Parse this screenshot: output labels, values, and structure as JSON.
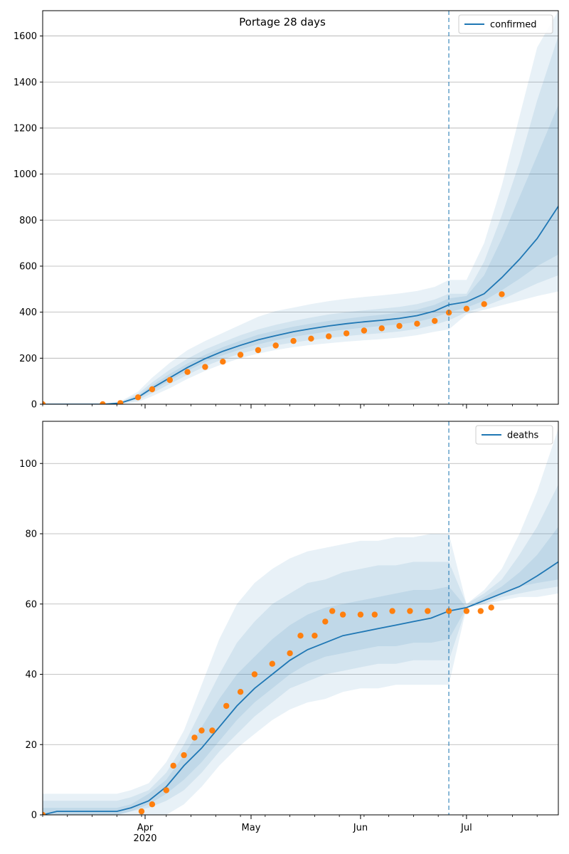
{
  "title": "Portage 28 days",
  "colors": {
    "model_line": "#1f77b4",
    "observed": "#ff7f0e",
    "band": "#1f77b4",
    "forecast_marker": "#1f77b4",
    "grid": "#b0b0b0"
  },
  "chart_data": [
    {
      "type": "line",
      "panel": "confirmed",
      "legend": {
        "label": "confirmed",
        "placement": "top-right"
      },
      "grid": {
        "y": true,
        "x": false
      },
      "x_range": [
        "2020-03-03",
        "2020-07-27"
      ],
      "ylim": [
        0,
        1710
      ],
      "yticks": [
        0,
        200,
        400,
        600,
        800,
        1000,
        1200,
        1400,
        1600
      ],
      "forecast_start": "2020-06-26",
      "model": {
        "x": [
          "2020-03-03",
          "2020-03-15",
          "2020-03-20",
          "2020-03-25",
          "2020-03-30",
          "2020-04-03",
          "2020-04-08",
          "2020-04-13",
          "2020-04-18",
          "2020-04-23",
          "2020-04-28",
          "2020-05-03",
          "2020-05-08",
          "2020-05-13",
          "2020-05-18",
          "2020-05-23",
          "2020-05-28",
          "2020-06-02",
          "2020-06-07",
          "2020-06-12",
          "2020-06-17",
          "2020-06-22",
          "2020-06-26",
          "2020-07-01",
          "2020-07-06",
          "2020-07-11",
          "2020-07-16",
          "2020-07-21",
          "2020-07-27"
        ],
        "y": [
          0,
          0,
          0,
          5,
          30,
          70,
          115,
          160,
          198,
          230,
          256,
          280,
          298,
          315,
          328,
          340,
          350,
          358,
          365,
          373,
          385,
          405,
          432,
          445,
          480,
          550,
          630,
          720,
          860
        ]
      },
      "bands": [
        {
          "level": "outer",
          "lower": [
            0,
            0,
            0,
            0,
            10,
            35,
            70,
            110,
            145,
            175,
            200,
            220,
            236,
            248,
            258,
            265,
            272,
            278,
            283,
            290,
            300,
            315,
            325,
            390,
            410,
            430,
            450,
            470,
            490
          ],
          "upper": [
            0,
            0,
            0,
            12,
            55,
            115,
            180,
            235,
            275,
            310,
            345,
            380,
            405,
            420,
            435,
            448,
            458,
            466,
            473,
            481,
            492,
            510,
            540,
            540,
            700,
            950,
            1250,
            1550,
            1710
          ]
        },
        {
          "level": "mid",
          "lower": [
            0,
            0,
            0,
            2,
            18,
            48,
            88,
            128,
            165,
            195,
            220,
            240,
            256,
            268,
            279,
            288,
            296,
            303,
            309,
            316,
            327,
            345,
            365,
            400,
            425,
            455,
            490,
            525,
            560
          ],
          "upper": [
            0,
            0,
            0,
            9,
            45,
            95,
            150,
            198,
            238,
            270,
            300,
            325,
            345,
            362,
            377,
            390,
            400,
            408,
            415,
            423,
            435,
            455,
            480,
            480,
            620,
            820,
            1050,
            1320,
            1600
          ]
        },
        {
          "level": "inner",
          "lower": [
            0,
            0,
            0,
            4,
            25,
            60,
            102,
            145,
            183,
            213,
            238,
            260,
            278,
            293,
            305,
            316,
            325,
            333,
            340,
            347,
            358,
            377,
            400,
            420,
            450,
            495,
            545,
            600,
            650
          ],
          "upper": [
            0,
            0,
            0,
            7,
            37,
            82,
            132,
            177,
            215,
            248,
            276,
            302,
            320,
            337,
            350,
            362,
            372,
            381,
            389,
            398,
            411,
            432,
            460,
            470,
            560,
            720,
            900,
            1080,
            1300
          ]
        }
      ],
      "observed": {
        "x": [
          "2020-03-03",
          "2020-03-20",
          "2020-03-25",
          "2020-03-30",
          "2020-04-03",
          "2020-04-08",
          "2020-04-13",
          "2020-04-18",
          "2020-04-23",
          "2020-04-28",
          "2020-05-03",
          "2020-05-08",
          "2020-05-13",
          "2020-05-18",
          "2020-05-23",
          "2020-05-28",
          "2020-06-02",
          "2020-06-07",
          "2020-06-12",
          "2020-06-17",
          "2020-06-22",
          "2020-06-26",
          "2020-07-01",
          "2020-07-06",
          "2020-07-11"
        ],
        "y": [
          0,
          0,
          5,
          30,
          65,
          105,
          140,
          162,
          185,
          215,
          235,
          255,
          275,
          285,
          295,
          308,
          320,
          330,
          340,
          350,
          362,
          398,
          415,
          435,
          478
        ]
      }
    },
    {
      "type": "line",
      "panel": "deaths",
      "legend": {
        "label": "deaths",
        "placement": "top-right"
      },
      "grid": {
        "y": true,
        "x": false
      },
      "x_range": [
        "2020-03-03",
        "2020-07-27"
      ],
      "xticks": [
        {
          "date": "2020-04-01",
          "label": "Apr",
          "sublabel": "2020"
        },
        {
          "date": "2020-05-01",
          "label": "May",
          "sublabel": ""
        },
        {
          "date": "2020-06-01",
          "label": "Jun",
          "sublabel": ""
        },
        {
          "date": "2020-07-01",
          "label": "Jul",
          "sublabel": ""
        }
      ],
      "ylim": [
        0,
        112
      ],
      "yticks": [
        0,
        20,
        40,
        60,
        80,
        100
      ],
      "forecast_start": "2020-06-26",
      "model": {
        "x": [
          "2020-03-03",
          "2020-03-07",
          "2020-03-24",
          "2020-03-28",
          "2020-04-02",
          "2020-04-07",
          "2020-04-12",
          "2020-04-17",
          "2020-04-22",
          "2020-04-27",
          "2020-05-02",
          "2020-05-07",
          "2020-05-12",
          "2020-05-17",
          "2020-05-22",
          "2020-05-27",
          "2020-06-01",
          "2020-06-06",
          "2020-06-11",
          "2020-06-16",
          "2020-06-21",
          "2020-06-26",
          "2020-07-01",
          "2020-07-06",
          "2020-07-11",
          "2020-07-16",
          "2020-07-21",
          "2020-07-27"
        ],
        "y": [
          0,
          1,
          1,
          2,
          4,
          8,
          14,
          19,
          25,
          31,
          36,
          40,
          44,
          47,
          49,
          51,
          52,
          53,
          54,
          55,
          56,
          58,
          59,
          61,
          63,
          65,
          68,
          72
        ]
      },
      "bands": [
        {
          "level": "outer",
          "lower": [
            0,
            0,
            0,
            0,
            0,
            0,
            3,
            8,
            14,
            19,
            23,
            27,
            30,
            32,
            33,
            35,
            36,
            36,
            37,
            37,
            37,
            37,
            59,
            60,
            61,
            62,
            62,
            63
          ],
          "upper": [
            6,
            6,
            6,
            7,
            9,
            15,
            24,
            37,
            50,
            60,
            66,
            70,
            73,
            75,
            76,
            77,
            78,
            78,
            79,
            79,
            80,
            80,
            60,
            64,
            70,
            80,
            92,
            110
          ]
        },
        {
          "level": "mid",
          "lower": [
            0,
            0,
            0,
            1,
            2,
            4,
            7,
            12,
            18,
            23,
            28,
            32,
            36,
            38,
            40,
            41,
            42,
            43,
            43,
            44,
            44,
            44,
            59,
            60,
            62,
            63,
            64,
            65
          ],
          "upper": [
            4,
            4,
            4,
            5,
            7,
            12,
            20,
            30,
            40,
            49,
            55,
            60,
            63,
            66,
            67,
            69,
            70,
            71,
            71,
            72,
            72,
            72,
            60,
            63,
            67,
            74,
            82,
            94
          ]
        },
        {
          "level": "inner",
          "lower": [
            0,
            0,
            0,
            1,
            3,
            6,
            10,
            15,
            21,
            27,
            32,
            36,
            40,
            43,
            45,
            46,
            47,
            48,
            48,
            49,
            49,
            50,
            59,
            61,
            63,
            65,
            66,
            67
          ],
          "upper": [
            2,
            2,
            2,
            3,
            6,
            10,
            17,
            25,
            33,
            40,
            45,
            50,
            54,
            57,
            59,
            60,
            61,
            62,
            63,
            64,
            64,
            65,
            59,
            62,
            65,
            69,
            74,
            82
          ]
        }
      ],
      "observed": {
        "x": [
          "2020-03-03",
          "2020-03-31",
          "2020-04-03",
          "2020-04-07",
          "2020-04-09",
          "2020-04-12",
          "2020-04-15",
          "2020-04-17",
          "2020-04-20",
          "2020-04-24",
          "2020-04-28",
          "2020-05-02",
          "2020-05-07",
          "2020-05-12",
          "2020-05-15",
          "2020-05-19",
          "2020-05-22",
          "2020-05-24",
          "2020-05-27",
          "2020-06-01",
          "2020-06-05",
          "2020-06-10",
          "2020-06-15",
          "2020-06-20",
          "2020-06-26",
          "2020-07-01",
          "2020-07-05",
          "2020-07-08"
        ],
        "y": [
          0,
          1,
          3,
          7,
          14,
          17,
          22,
          24,
          24,
          31,
          35,
          40,
          43,
          46,
          51,
          51,
          55,
          58,
          57,
          57,
          57,
          58,
          58,
          58,
          58,
          58,
          58,
          59
        ]
      }
    }
  ]
}
